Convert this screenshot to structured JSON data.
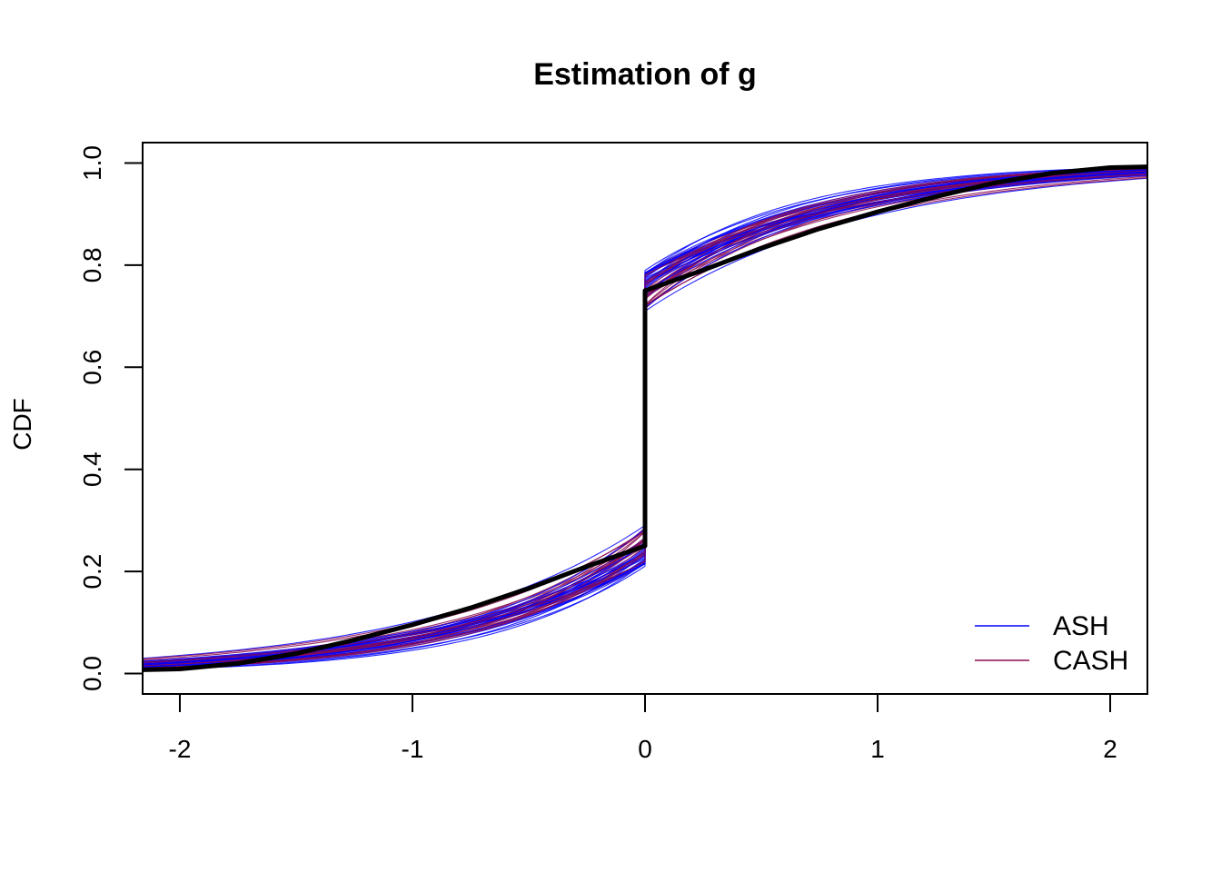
{
  "chart_data": {
    "type": "line",
    "title": "Estimation of g",
    "xlabel": "",
    "ylabel": "CDF",
    "xlim": [
      -2.16,
      2.16
    ],
    "ylim": [
      -0.04,
      1.04
    ],
    "x_ticks": [
      -2,
      -1,
      0,
      1,
      2
    ],
    "x_tick_labels": [
      "-2",
      "-1",
      "0",
      "1",
      "2"
    ],
    "y_ticks": [
      0.0,
      0.2,
      0.4,
      0.6,
      0.8,
      1.0
    ],
    "y_tick_labels": [
      "0.0",
      "0.2",
      "0.4",
      "0.6",
      "0.8",
      "1.0"
    ],
    "grid": false,
    "legend_position": "bottom-right",
    "legend": [
      {
        "name": "ASH",
        "color": "#0000FF"
      },
      {
        "name": "CASH",
        "color": "#8B0A50"
      }
    ],
    "truth": {
      "color": "#000000",
      "null_weight": 0.5,
      "scale": 0.8,
      "x": [
        -2.16,
        -2.0,
        -1.75,
        -1.5,
        -1.25,
        -1.0,
        -0.75,
        -0.5,
        -0.25,
        0.0,
        0.0,
        0.25,
        0.5,
        0.75,
        1.0,
        1.25,
        1.5,
        1.75,
        2.0,
        2.16
      ],
      "y": [
        0.0074,
        0.009,
        0.0198,
        0.0391,
        0.066,
        0.0955,
        0.1286,
        0.1667,
        0.2098,
        0.25,
        0.75,
        0.7902,
        0.8333,
        0.8714,
        0.9045,
        0.934,
        0.9609,
        0.9802,
        0.991,
        0.9926
      ]
    },
    "ensemble": {
      "series_per_method": 25,
      "null_weight_range": [
        0.42,
        0.58
      ],
      "scale_range": [
        0.62,
        0.98
      ]
    }
  }
}
